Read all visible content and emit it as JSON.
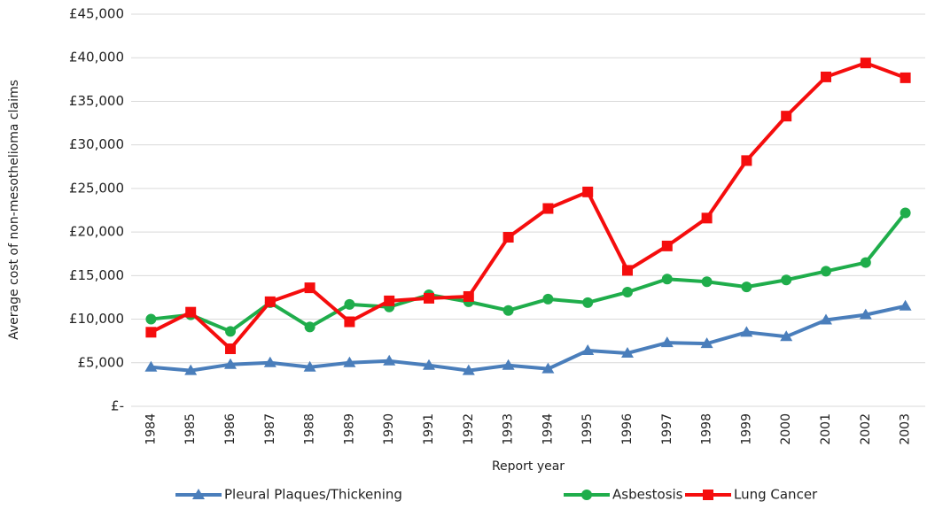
{
  "chart_data": {
    "type": "line",
    "x_label": "Report year",
    "y_label": "Average cost of non-mesothelioma claims",
    "categories": [
      "1984",
      "1985",
      "1986",
      "1987",
      "1988",
      "1989",
      "1990",
      "1991",
      "1992",
      "1993",
      "1994",
      "1995",
      "1996",
      "1997",
      "1998",
      "1999",
      "2000",
      "2001",
      "2002",
      "2003"
    ],
    "series": [
      {
        "name": "Pleural Plaques/Thickening",
        "color": "#4a7ebb",
        "marker": "triangle",
        "values": [
          4500,
          4100,
          4800,
          5000,
          4500,
          5000,
          5200,
          4700,
          4100,
          4700,
          4300,
          6400,
          6100,
          7300,
          7200,
          8500,
          8000,
          9900,
          10500,
          11500
        ]
      },
      {
        "name": "Asbestosis",
        "color": "#1fad4b",
        "marker": "circle",
        "values": [
          10000,
          10500,
          8600,
          11900,
          9100,
          11700,
          11400,
          12800,
          12000,
          11000,
          12300,
          11900,
          13100,
          14600,
          14300,
          13700,
          14500,
          15500,
          16500,
          22200
        ]
      },
      {
        "name": "Lung Cancer",
        "color": "#f50d0d",
        "marker": "square",
        "values": [
          8500,
          10800,
          6600,
          12000,
          13600,
          9700,
          12100,
          12400,
          12600,
          19400,
          22700,
          24600,
          15600,
          18400,
          21600,
          28200,
          33300,
          37800,
          39400,
          37700
        ]
      }
    ],
    "ylim": [
      0,
      45000
    ],
    "yticks": [
      {
        "value": 0,
        "label": "£-"
      },
      {
        "value": 5000,
        "label": "£5,000"
      },
      {
        "value": 10000,
        "label": "£10,000"
      },
      {
        "value": 15000,
        "label": "£15,000"
      },
      {
        "value": 20000,
        "label": "£20,000"
      },
      {
        "value": 25000,
        "label": "£25,000"
      },
      {
        "value": 30000,
        "label": "£30,000"
      },
      {
        "value": 35000,
        "label": "£35,000"
      },
      {
        "value": 40000,
        "label": "£40,000"
      },
      {
        "value": 45000,
        "label": "£45,000"
      }
    ],
    "grid": true,
    "legend": "bottom"
  }
}
